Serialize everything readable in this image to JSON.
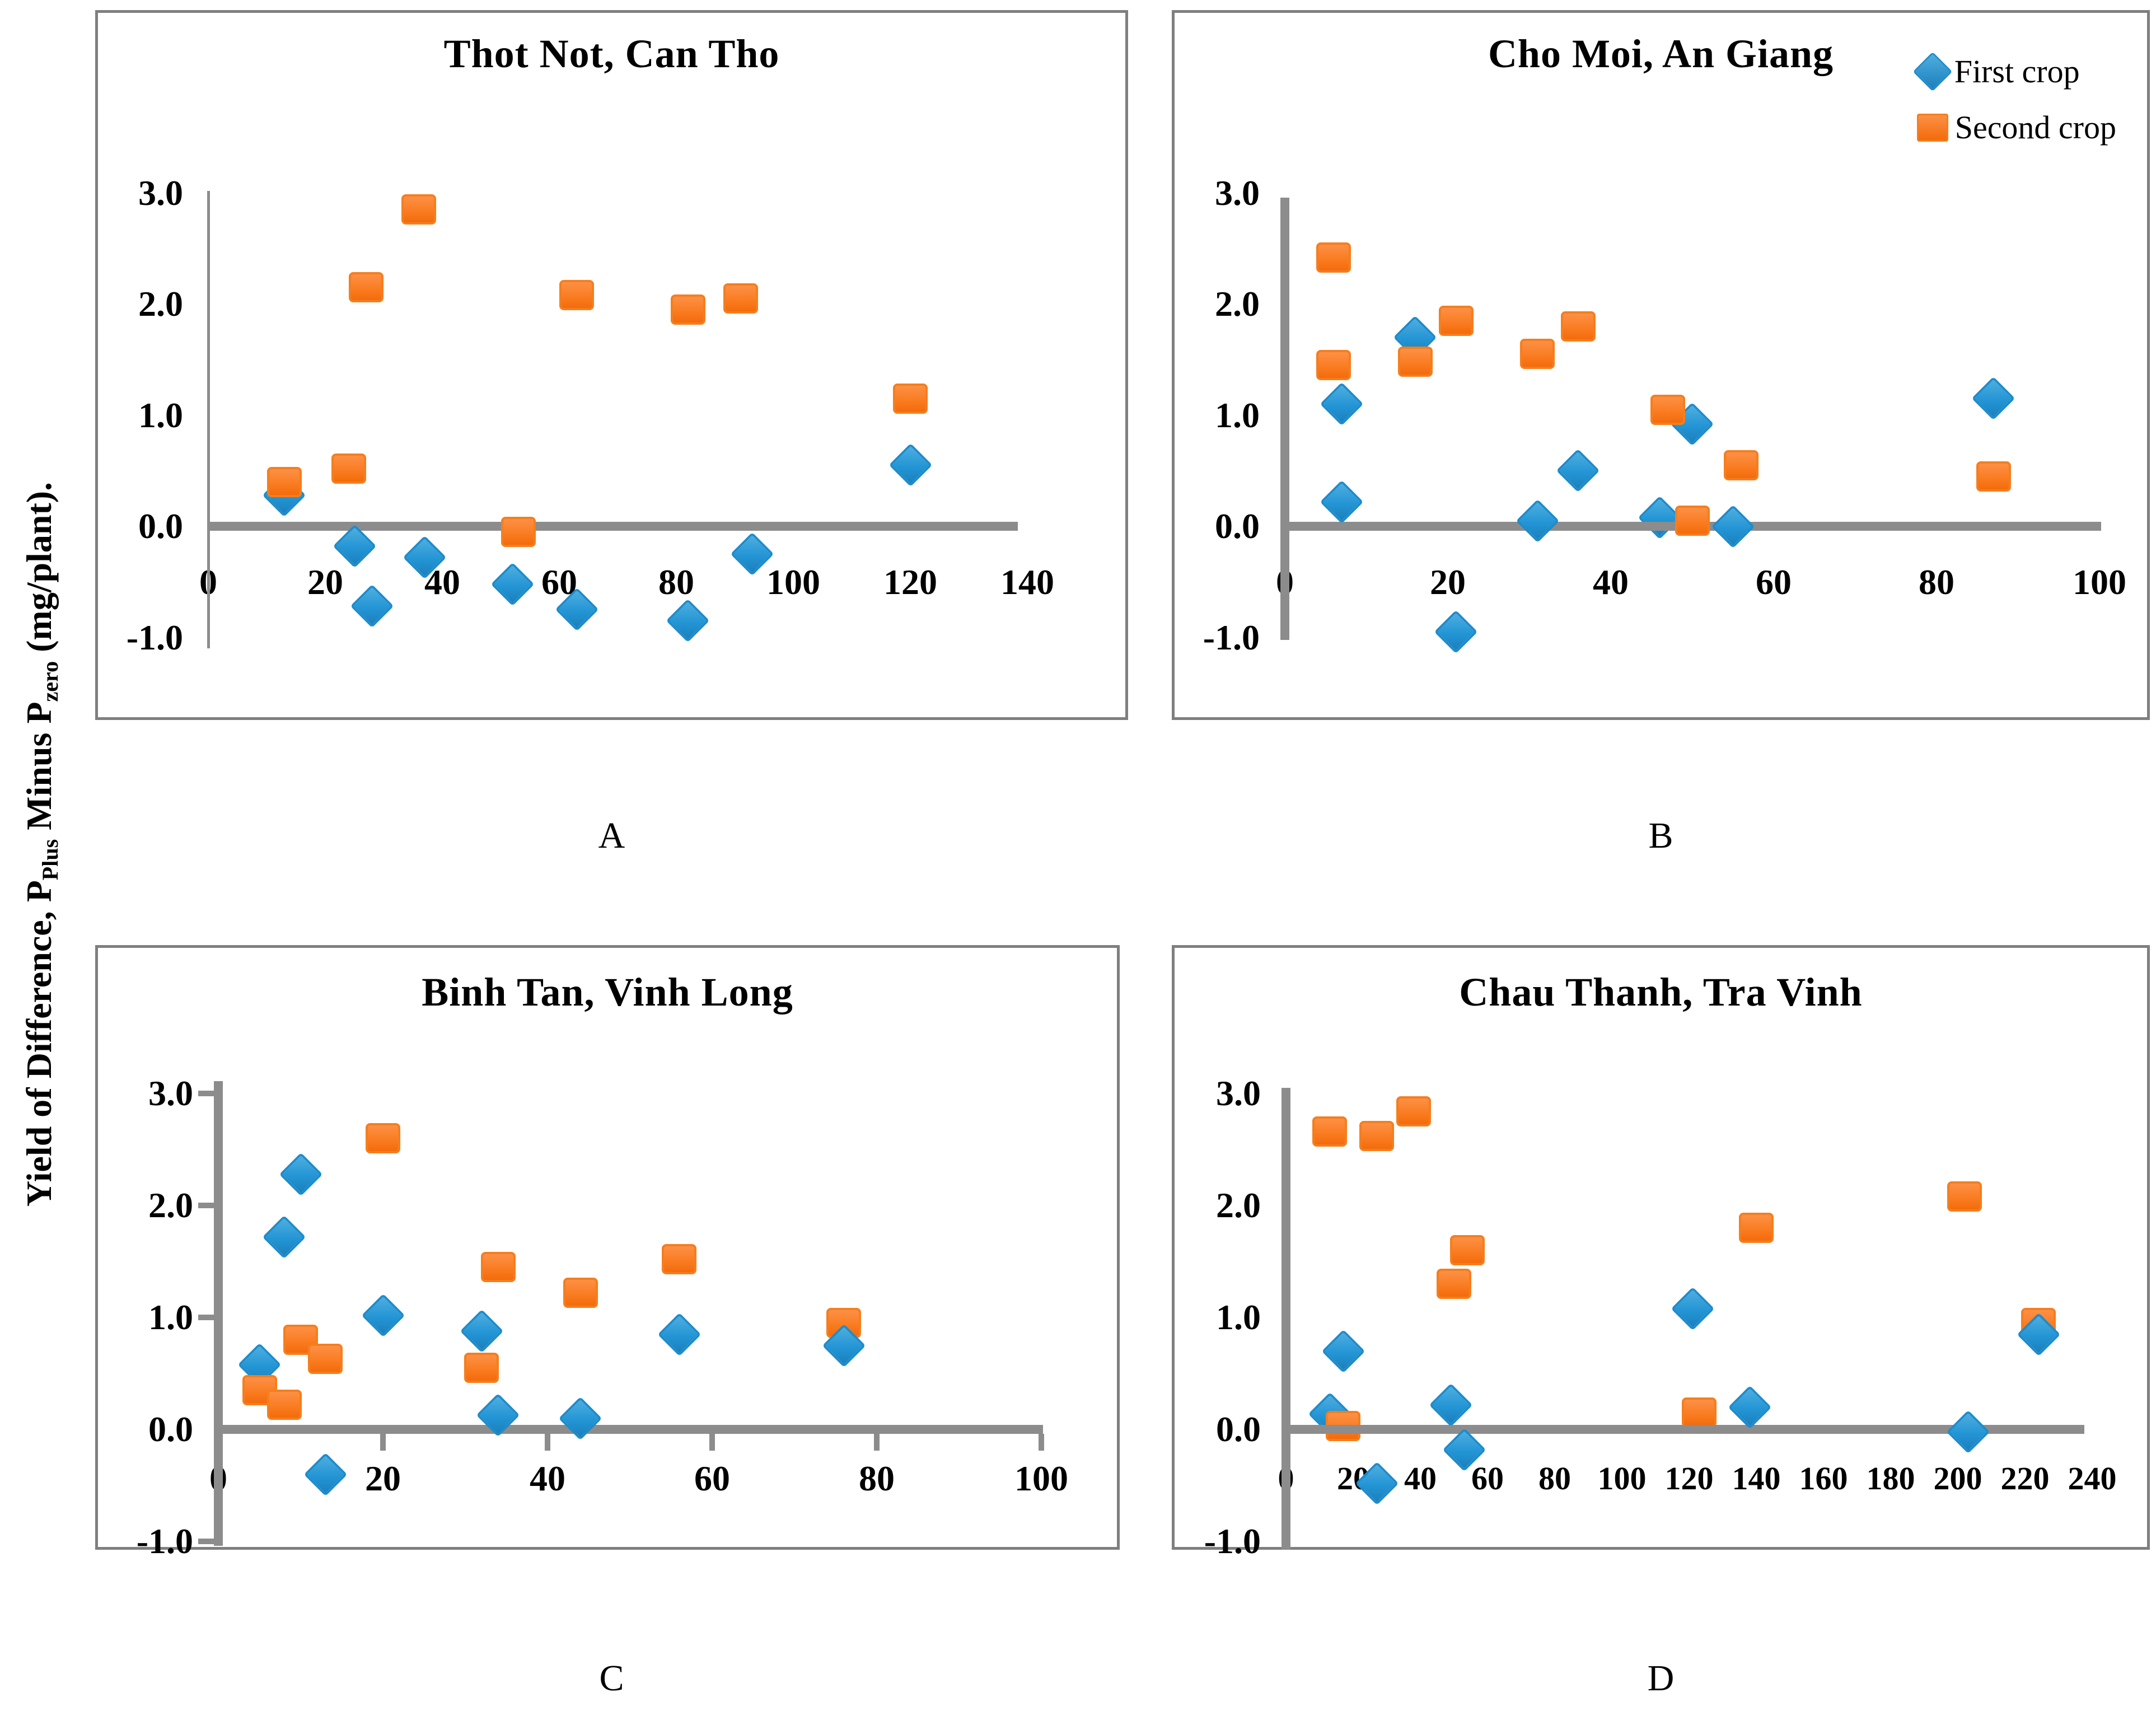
{
  "figure": {
    "y_axis_label": {
      "prefix": "Yield of Difference, P",
      "sub1": "Plus",
      "mid": " Minus P",
      "sub2": "zero",
      "suffix": " (mg/plant)."
    },
    "legend": {
      "first": "First crop",
      "second": "Second crop"
    },
    "colors": {
      "first_crop_blue": "#2395D5",
      "second_crop_orange": "#FA7D22",
      "axis_gray": "#8C8C8C",
      "panel_border_gray": "#7F7F7F"
    }
  },
  "chart_data": [
    {
      "id": "A",
      "type": "scatter",
      "title": "Thot Not, Can Tho",
      "panel_label": "A",
      "xlim": [
        0,
        140
      ],
      "ylim": [
        -1.0,
        3.0
      ],
      "grid": false,
      "x_ticks": [
        0,
        20,
        40,
        60,
        80,
        100,
        120,
        140
      ],
      "y_ticks": [
        "3.0",
        "2.0",
        "1.0",
        "0.0",
        "-1.0"
      ],
      "series": [
        {
          "name": "First crop",
          "marker": "diamond",
          "points": [
            [
              13,
              0.28,
              1
            ],
            [
              25,
              -0.18
            ],
            [
              28,
              -0.72
            ],
            [
              37,
              -0.28
            ],
            [
              52,
              -0.52
            ],
            [
              63,
              -0.75
            ],
            [
              82,
              -0.85
            ],
            [
              93,
              -0.25
            ],
            [
              120,
              0.55
            ]
          ]
        },
        {
          "name": "Second crop",
          "marker": "square",
          "points": [
            [
              13,
              0.4
            ],
            [
              24,
              0.52
            ],
            [
              27,
              2.15
            ],
            [
              36,
              2.85
            ],
            [
              53,
              -0.05
            ],
            [
              63,
              2.08
            ],
            [
              82,
              1.95
            ],
            [
              91,
              2.05
            ],
            [
              120,
              1.15
            ]
          ]
        }
      ]
    },
    {
      "id": "B",
      "type": "scatter",
      "title": "Cho Moi, An Giang",
      "panel_label": "B",
      "xlim": [
        0,
        100
      ],
      "ylim": [
        -1.0,
        3.0
      ],
      "grid": false,
      "legend_position": "top-right",
      "x_ticks": [
        0,
        20,
        40,
        60,
        80,
        100
      ],
      "y_ticks": [
        "3.0",
        "2.0",
        "1.0",
        "0.0",
        "-1.0"
      ],
      "series": [
        {
          "name": "First crop",
          "marker": "diamond",
          "points": [
            [
              7,
              1.1,
              1
            ],
            [
              7,
              0.22
            ],
            [
              16,
              1.7,
              1
            ],
            [
              21,
              -0.95
            ],
            [
              31,
              0.05
            ],
            [
              36,
              0.5
            ],
            [
              46,
              0.08,
              1
            ],
            [
              50,
              0.92,
              1
            ],
            [
              55,
              0.0
            ],
            [
              87,
              1.15
            ]
          ]
        },
        {
          "name": "Second crop",
          "marker": "square",
          "points": [
            [
              6,
              2.42
            ],
            [
              6,
              1.45
            ],
            [
              16,
              1.48
            ],
            [
              21,
              1.85
            ],
            [
              31,
              1.55
            ],
            [
              36,
              1.8
            ],
            [
              47,
              1.05
            ],
            [
              50,
              0.05
            ],
            [
              56,
              0.55
            ],
            [
              87,
              0.45
            ]
          ]
        }
      ]
    },
    {
      "id": "C",
      "type": "scatter",
      "title": "Binh Tan, Vinh Long",
      "panel_label": "C",
      "xlim": [
        0,
        100
      ],
      "ylim": [
        -1.0,
        3.0
      ],
      "grid": false,
      "x_ticks": [
        0,
        20,
        40,
        60,
        80,
        100
      ],
      "y_ticks": [
        "3.0",
        "2.0",
        "1.0",
        "0.0",
        "-1.0"
      ],
      "series": [
        {
          "name": "First crop",
          "marker": "diamond",
          "points": [
            [
              5,
              0.58,
              1
            ],
            [
              8,
              1.72
            ],
            [
              10,
              2.28
            ],
            [
              13,
              -0.4
            ],
            [
              20,
              1.02
            ],
            [
              32,
              0.88
            ],
            [
              34,
              0.13
            ],
            [
              44,
              0.1
            ],
            [
              56,
              0.85
            ],
            [
              76,
              0.75
            ]
          ]
        },
        {
          "name": "Second crop",
          "marker": "square",
          "points": [
            [
              5,
              0.35
            ],
            [
              8,
              0.22
            ],
            [
              10,
              0.8
            ],
            [
              13,
              0.63
            ],
            [
              20,
              2.6
            ],
            [
              32,
              0.55
            ],
            [
              34,
              1.45
            ],
            [
              44,
              1.22
            ],
            [
              56,
              1.52
            ],
            [
              76,
              0.95
            ]
          ]
        }
      ]
    },
    {
      "id": "D",
      "type": "scatter",
      "title": "Chau Thanh, Tra Vinh",
      "panel_label": "D",
      "xlim": [
        0,
        240
      ],
      "ylim": [
        -1.0,
        3.0
      ],
      "grid": false,
      "x_ticks": [
        0,
        20,
        40,
        60,
        80,
        100,
        120,
        140,
        160,
        180,
        200,
        220,
        240
      ],
      "y_ticks": [
        "3.0",
        "2.0",
        "1.0",
        "0.0",
        "-1.0"
      ],
      "series": [
        {
          "name": "First crop",
          "marker": "diamond",
          "points": [
            [
              13,
              0.14,
              1
            ],
            [
              17,
              0.7
            ],
            [
              27,
              -0.48
            ],
            [
              49,
              0.22
            ],
            [
              53,
              -0.18
            ],
            [
              121,
              1.08
            ],
            [
              138,
              0.2
            ],
            [
              203,
              -0.02
            ],
            [
              224,
              0.85
            ]
          ]
        },
        {
          "name": "Second crop",
          "marker": "square",
          "points": [
            [
              13,
              2.66
            ],
            [
              27,
              2.62
            ],
            [
              38,
              2.84
            ],
            [
              17,
              0.03
            ],
            [
              50,
              1.3
            ],
            [
              54,
              1.6
            ],
            [
              123,
              0.15
            ],
            [
              140,
              1.8
            ],
            [
              202,
              2.08
            ],
            [
              224,
              0.95
            ]
          ]
        }
      ]
    }
  ]
}
